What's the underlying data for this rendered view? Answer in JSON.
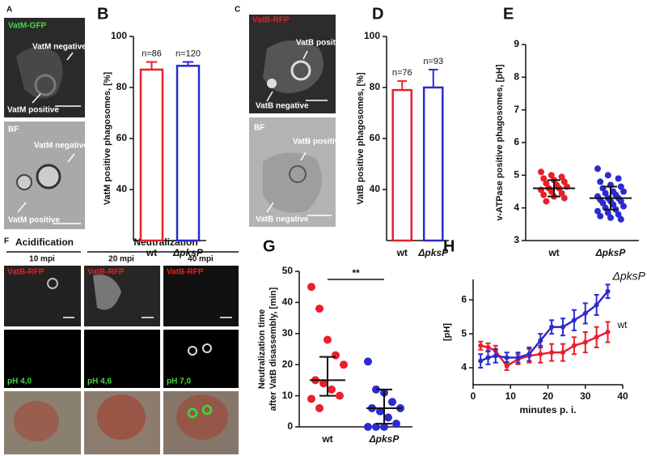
{
  "image_panels": [
    {
      "letter": "A",
      "labels": [
        "VatM-GFP",
        "VatM negative",
        "VatM positive",
        "BF",
        "VatM negative",
        "VatM positive"
      ]
    },
    {
      "letter": "C",
      "labels": [
        "VatB-RFP",
        "VatB positive",
        "VatB negative",
        "BF",
        "VatB positive",
        "VatB negative"
      ]
    },
    {
      "letter": "F",
      "headings": [
        "Acidification",
        "Neutralization"
      ],
      "times": [
        "10 mpi",
        "20 mpi",
        "40 mpi"
      ],
      "stain": [
        "VatB-RFP",
        "VatB-RFP",
        "VatB-RFP"
      ],
      "ph": [
        "pH 4,0",
        "pH 4,6",
        "pH 7,0"
      ]
    }
  ],
  "chart_data": [
    {
      "type": "bar",
      "panel": "B",
      "ylabel": "VatM positive phagosomes, [%]",
      "categories": [
        "wt",
        "ΔpksP"
      ],
      "values": [
        87,
        88.5
      ],
      "errors": [
        3,
        1.5
      ],
      "n_labels": [
        "n=86",
        "n=120"
      ],
      "colors": [
        "#e8202a",
        "#2b2bd0"
      ],
      "ylim": [
        20,
        100
      ],
      "yticks": [
        40,
        60,
        80,
        100
      ]
    },
    {
      "type": "bar",
      "panel": "D",
      "ylabel": "VatB positive phagosomes, [%]",
      "categories": [
        "wt",
        "ΔpksP"
      ],
      "values": [
        79,
        80
      ],
      "errors": [
        3.5,
        7
      ],
      "n_labels": [
        "n=76",
        "n=93"
      ],
      "colors": [
        "#e8202a",
        "#2b2bd0"
      ],
      "ylim": [
        20,
        100
      ],
      "yticks": [
        40,
        60,
        80,
        100
      ]
    },
    {
      "type": "strip",
      "panel": "E",
      "ylabel": "v-ATPase positive phagosomes, [pH]",
      "categories": [
        "wt",
        "ΔpksP"
      ],
      "colors": [
        "#e8202a",
        "#2b2bd0"
      ],
      "values": [
        [
          5.1,
          5.0,
          4.95,
          4.9,
          4.85,
          4.8,
          4.75,
          4.7,
          4.65,
          4.6,
          4.6,
          4.55,
          4.5,
          4.45,
          4.4,
          4.35,
          4.3,
          4.2
        ],
        [
          5.2,
          5.0,
          4.9,
          4.8,
          4.7,
          4.65,
          4.6,
          4.5,
          4.5,
          4.45,
          4.4,
          4.35,
          4.3,
          4.3,
          4.25,
          4.2,
          4.2,
          4.15,
          4.1,
          4.05,
          4.0,
          3.95,
          3.9,
          3.85,
          3.8,
          3.75,
          3.7,
          3.65
        ]
      ],
      "means": [
        4.6,
        4.3
      ],
      "sd": [
        0.25,
        0.35
      ],
      "ylim": [
        3,
        9
      ],
      "yticks": [
        3,
        4,
        5,
        6,
        7,
        8,
        9
      ]
    },
    {
      "type": "dot-median",
      "panel": "G",
      "ylabel": [
        "Neutralization time",
        "after VatB disassembly, [min]"
      ],
      "categories": [
        "wt",
        "ΔpksP"
      ],
      "colors": [
        "#e8202a",
        "#2b2bd0"
      ],
      "values": [
        [
          45,
          38,
          28,
          23,
          20,
          15,
          14,
          12,
          10,
          9,
          6
        ],
        [
          21,
          12,
          11,
          8,
          6,
          6,
          5,
          3,
          1,
          0,
          0,
          0
        ]
      ],
      "medians": [
        15,
        6
      ],
      "lower": [
        10,
        1
      ],
      "upper": [
        22.5,
        12
      ],
      "significance": "**",
      "ylim": [
        0,
        50
      ],
      "yticks": [
        0,
        10,
        20,
        30,
        40,
        50
      ]
    },
    {
      "type": "line",
      "panel": "H",
      "ylabel": "[pH]",
      "xlabel": "minutes p. i.",
      "x": [
        2,
        4,
        6,
        9,
        12,
        15,
        18,
        21,
        24,
        27,
        30,
        33,
        36
      ],
      "series": [
        {
          "name": "wt",
          "color": "#e8202a",
          "values": [
            4.65,
            4.6,
            4.5,
            4.05,
            4.25,
            4.35,
            4.4,
            4.45,
            4.45,
            4.65,
            4.75,
            4.9,
            5.05
          ],
          "errors": [
            0.12,
            0.12,
            0.15,
            0.12,
            0.15,
            0.2,
            0.25,
            0.25,
            0.25,
            0.25,
            0.3,
            0.3,
            0.3
          ]
        },
        {
          "name": "ΔpksP",
          "color": "#2b2bd0",
          "values": [
            4.2,
            4.3,
            4.35,
            4.3,
            4.3,
            4.4,
            4.8,
            5.2,
            5.2,
            5.4,
            5.6,
            5.85,
            6.25
          ],
          "errors": [
            0.2,
            0.2,
            0.2,
            0.15,
            0.15,
            0.2,
            0.2,
            0.2,
            0.25,
            0.3,
            0.3,
            0.3,
            0.2
          ]
        }
      ],
      "xlim": [
        0,
        40
      ],
      "xticks": [
        0,
        10,
        20,
        30,
        40
      ],
      "ylim": [
        3.5,
        6.6
      ],
      "yticks": [
        4,
        5,
        6
      ]
    }
  ]
}
